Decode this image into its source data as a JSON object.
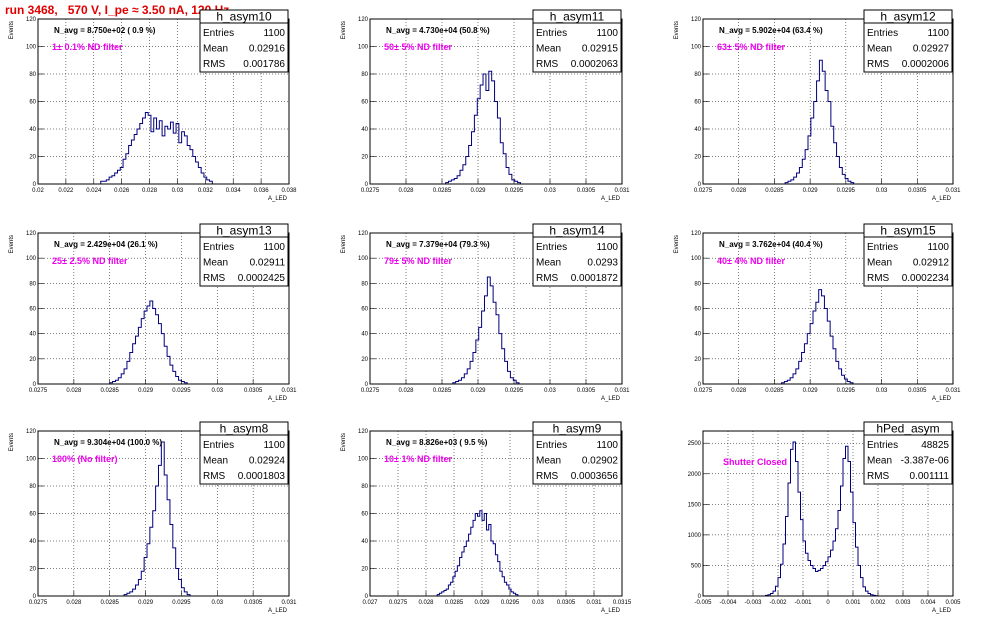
{
  "header": {
    "title": "run 3468,   570 V, I_pe ≈ 3.50 nA, 120 Hz"
  },
  "stats_labels": {
    "entries": "Entries",
    "mean": "Mean",
    "rms": "RMS"
  },
  "colors": {
    "hist": "#000080",
    "title": "#e00000",
    "filter_label": "#ee00ee",
    "grid": "#000000"
  },
  "chart_data": [
    {
      "type": "bar",
      "name": "h_asym10",
      "xlabel": "A_LED",
      "ylabel": "Events",
      "xlim": [
        0.02,
        0.038
      ],
      "ylim": [
        0,
        120
      ],
      "xticks": [
        "0.02",
        "0.022",
        "0.024",
        "0.026",
        "0.028",
        "0.03",
        "0.032",
        "0.034",
        "0.036",
        "0.038"
      ],
      "yticks": [
        "0",
        "20",
        "40",
        "60",
        "80",
        "100",
        "120"
      ],
      "n_avg": "N_avg = 8.750e+02 ( 0.9 %)",
      "label": "1± 0.1% ND filter",
      "stats": {
        "entries": "1100",
        "mean": "0.02916",
        "rms": "0.001786"
      },
      "bin_lo": 0.0245,
      "bin_width": 0.0002,
      "counts": [
        2,
        2,
        3,
        5,
        6,
        8,
        10,
        12,
        18,
        22,
        28,
        32,
        36,
        40,
        44,
        48,
        52,
        50,
        38,
        48,
        40,
        46,
        35,
        42,
        40,
        45,
        37,
        44,
        30,
        38,
        35,
        28,
        25,
        20,
        16,
        12,
        8,
        5,
        3,
        2
      ]
    },
    {
      "type": "bar",
      "name": "h_asym11",
      "xlabel": "A_LED",
      "ylabel": "Events",
      "xlim": [
        0.0275,
        0.031
      ],
      "ylim": [
        0,
        120
      ],
      "xticks": [
        "0.0275",
        "0.028",
        "0.0285",
        "0.029",
        "0.0295",
        "0.03",
        "0.0305",
        "0.031"
      ],
      "yticks": [
        "0",
        "20",
        "40",
        "60",
        "80",
        "100",
        "120"
      ],
      "n_avg": "N_avg = 4.730e+04 (50.8 %)",
      "label": "50± 5% ND filter",
      "stats": {
        "entries": "1100",
        "mean": "0.02915",
        "rms": "0.0002063"
      },
      "bin_lo": 0.02855,
      "bin_width": 4e-05,
      "counts": [
        1,
        2,
        3,
        4,
        6,
        10,
        14,
        20,
        28,
        38,
        50,
        62,
        72,
        80,
        68,
        82,
        75,
        60,
        48,
        30,
        22,
        12,
        7,
        3,
        2,
        1
      ]
    },
    {
      "type": "bar",
      "name": "h_asym12",
      "xlabel": "A_LED",
      "ylabel": "Events",
      "xlim": [
        0.0275,
        0.031
      ],
      "ylim": [
        0,
        120
      ],
      "xticks": [
        "0.0275",
        "0.028",
        "0.0285",
        "0.029",
        "0.0295",
        "0.03",
        "0.0305",
        "0.031"
      ],
      "yticks": [
        "0",
        "20",
        "40",
        "60",
        "80",
        "100",
        "120"
      ],
      "n_avg": "N_avg = 5.902e+04 (63.4 %)",
      "label": "63± 5% ND filter",
      "stats": {
        "entries": "1100",
        "mean": "0.02927",
        "rms": "0.0002006"
      },
      "bin_lo": 0.02865,
      "bin_width": 4e-05,
      "counts": [
        1,
        2,
        3,
        5,
        8,
        12,
        18,
        25,
        35,
        48,
        60,
        75,
        90,
        82,
        68,
        60,
        42,
        30,
        20,
        12,
        7,
        4,
        2,
        1
      ]
    },
    {
      "type": "bar",
      "name": "h_asym13",
      "xlabel": "A_LED",
      "ylabel": "Events",
      "xlim": [
        0.0275,
        0.031
      ],
      "ylim": [
        0,
        120
      ],
      "xticks": [
        "0.0275",
        "0.028",
        "0.0285",
        "0.029",
        "0.0295",
        "0.03",
        "0.0305",
        "0.031"
      ],
      "yticks": [
        "0",
        "20",
        "40",
        "60",
        "80",
        "100",
        "120"
      ],
      "n_avg": "N_avg = 2.429e+04 (26.1 %)",
      "label": "25± 2.5% ND filter",
      "stats": {
        "entries": "1100",
        "mean": "0.02911",
        "rms": "0.0002425"
      },
      "bin_lo": 0.0285,
      "bin_width": 4e-05,
      "counts": [
        1,
        2,
        3,
        5,
        8,
        12,
        18,
        25,
        32,
        38,
        45,
        52,
        58,
        62,
        66,
        60,
        55,
        48,
        40,
        30,
        22,
        15,
        10,
        6,
        3,
        2,
        1
      ]
    },
    {
      "type": "bar",
      "name": "h_asym14",
      "xlabel": "A_LED",
      "ylabel": "Events",
      "xlim": [
        0.0275,
        0.031
      ],
      "ylim": [
        0,
        120
      ],
      "xticks": [
        "0.0275",
        "0.028",
        "0.0285",
        "0.029",
        "0.0295",
        "0.03",
        "0.0305",
        "0.031"
      ],
      "yticks": [
        "0",
        "20",
        "40",
        "60",
        "80",
        "100",
        "120"
      ],
      "n_avg": "N_avg = 7.379e+04 (79.3 %)",
      "label": "79± 5% ND filter",
      "stats": {
        "entries": "1100",
        "mean": "0.0293",
        "rms": "0.0001872"
      },
      "bin_lo": 0.02865,
      "bin_width": 4e-05,
      "counts": [
        1,
        2,
        3,
        5,
        8,
        12,
        18,
        25,
        35,
        45,
        58,
        70,
        85,
        78,
        65,
        55,
        40,
        28,
        18,
        10,
        5,
        3,
        1
      ]
    },
    {
      "type": "bar",
      "name": "h_asym15",
      "xlabel": "A_LED",
      "ylabel": "Events",
      "xlim": [
        0.0275,
        0.031
      ],
      "ylim": [
        0,
        120
      ],
      "xticks": [
        "0.0275",
        "0.028",
        "0.0285",
        "0.029",
        "0.0295",
        "0.03",
        "0.0305",
        "0.031"
      ],
      "yticks": [
        "0",
        "20",
        "40",
        "60",
        "80",
        "100",
        "120"
      ],
      "n_avg": "N_avg = 3.762e+04 (40.4 %)",
      "label": "40± 4% ND filter",
      "stats": {
        "entries": "1100",
        "mean": "0.02912",
        "rms": "0.0002234"
      },
      "bin_lo": 0.0286,
      "bin_width": 4e-05,
      "counts": [
        1,
        2,
        3,
        5,
        8,
        12,
        18,
        25,
        32,
        40,
        48,
        58,
        65,
        75,
        70,
        60,
        50,
        38,
        28,
        18,
        12,
        7,
        4,
        2,
        1
      ]
    },
    {
      "type": "bar",
      "name": "h_asym8",
      "xlabel": "A_LED",
      "ylabel": "Events",
      "xlim": [
        0.0275,
        0.031
      ],
      "ylim": [
        0,
        120
      ],
      "xticks": [
        "0.0275",
        "0.028",
        "0.0285",
        "0.029",
        "0.0295",
        "0.03",
        "0.0305",
        "0.031"
      ],
      "yticks": [
        "0",
        "20",
        "40",
        "60",
        "80",
        "100",
        "120"
      ],
      "n_avg": "N_avg = 9.304e+04 (100.0 %)",
      "label": "100% (No filter)",
      "stats": {
        "entries": "1100",
        "mean": "0.02924",
        "rms": "0.0001803"
      },
      "bin_lo": 0.0287,
      "bin_width": 4e-05,
      "counts": [
        1,
        2,
        3,
        5,
        8,
        12,
        18,
        28,
        38,
        50,
        62,
        80,
        95,
        112,
        88,
        70,
        52,
        35,
        20,
        12,
        6,
        3,
        1
      ]
    },
    {
      "type": "bar",
      "name": "h_asym9",
      "xlabel": "A_LED",
      "ylabel": "Events",
      "xlim": [
        0.027,
        0.0315
      ],
      "ylim": [
        0,
        120
      ],
      "xticks": [
        "0.027",
        "0.0275",
        "0.028",
        "0.0285",
        "0.029",
        "0.0295",
        "0.03",
        "0.0305",
        "0.031",
        "0.0315"
      ],
      "yticks": [
        "0",
        "20",
        "40",
        "60",
        "80",
        "100",
        "120"
      ],
      "n_avg": "N_avg = 8.826e+03 ( 9.5 %)",
      "label": "10± 1% ND filter",
      "stats": {
        "entries": "1100",
        "mean": "0.02902",
        "rms": "0.0003656"
      },
      "bin_lo": 0.0282,
      "bin_width": 4e-05,
      "counts": [
        1,
        2,
        3,
        4,
        5,
        8,
        10,
        14,
        18,
        22,
        28,
        32,
        36,
        40,
        45,
        50,
        55,
        60,
        58,
        62,
        55,
        60,
        48,
        52,
        40,
        38,
        30,
        25,
        18,
        14,
        10,
        8,
        5,
        3,
        2,
        1
      ]
    },
    {
      "type": "bar",
      "name": "hPed_asym",
      "xlabel": "A_LED",
      "ylabel": "",
      "xlim": [
        -0.005,
        0.005
      ],
      "ylim": [
        0,
        2700
      ],
      "xticks": [
        "-0.005",
        "-0.004",
        "-0.003",
        "-0.002",
        "-0.001",
        "0",
        "0.001",
        "0.002",
        "0.003",
        "0.004",
        "0.005"
      ],
      "yticks": [
        "0",
        "500",
        "1000",
        "1500",
        "2000",
        "2500"
      ],
      "n_avg": "",
      "label": "Shutter Closed",
      "stats": {
        "entries": "48825",
        "mean": "-3.387e-06",
        "rms": "0.001111"
      },
      "bin_lo": -0.0025,
      "bin_width": 0.0001,
      "counts": [
        10,
        20,
        40,
        80,
        160,
        300,
        520,
        850,
        1300,
        1850,
        2400,
        2520,
        2200,
        1700,
        1250,
        900,
        700,
        580,
        500,
        450,
        400,
        420,
        450,
        500,
        560,
        640,
        750,
        900,
        1100,
        1400,
        1800,
        2250,
        2450,
        2200,
        1700,
        1200,
        800,
        500,
        300,
        150,
        80,
        40,
        20,
        10,
        5
      ]
    }
  ]
}
